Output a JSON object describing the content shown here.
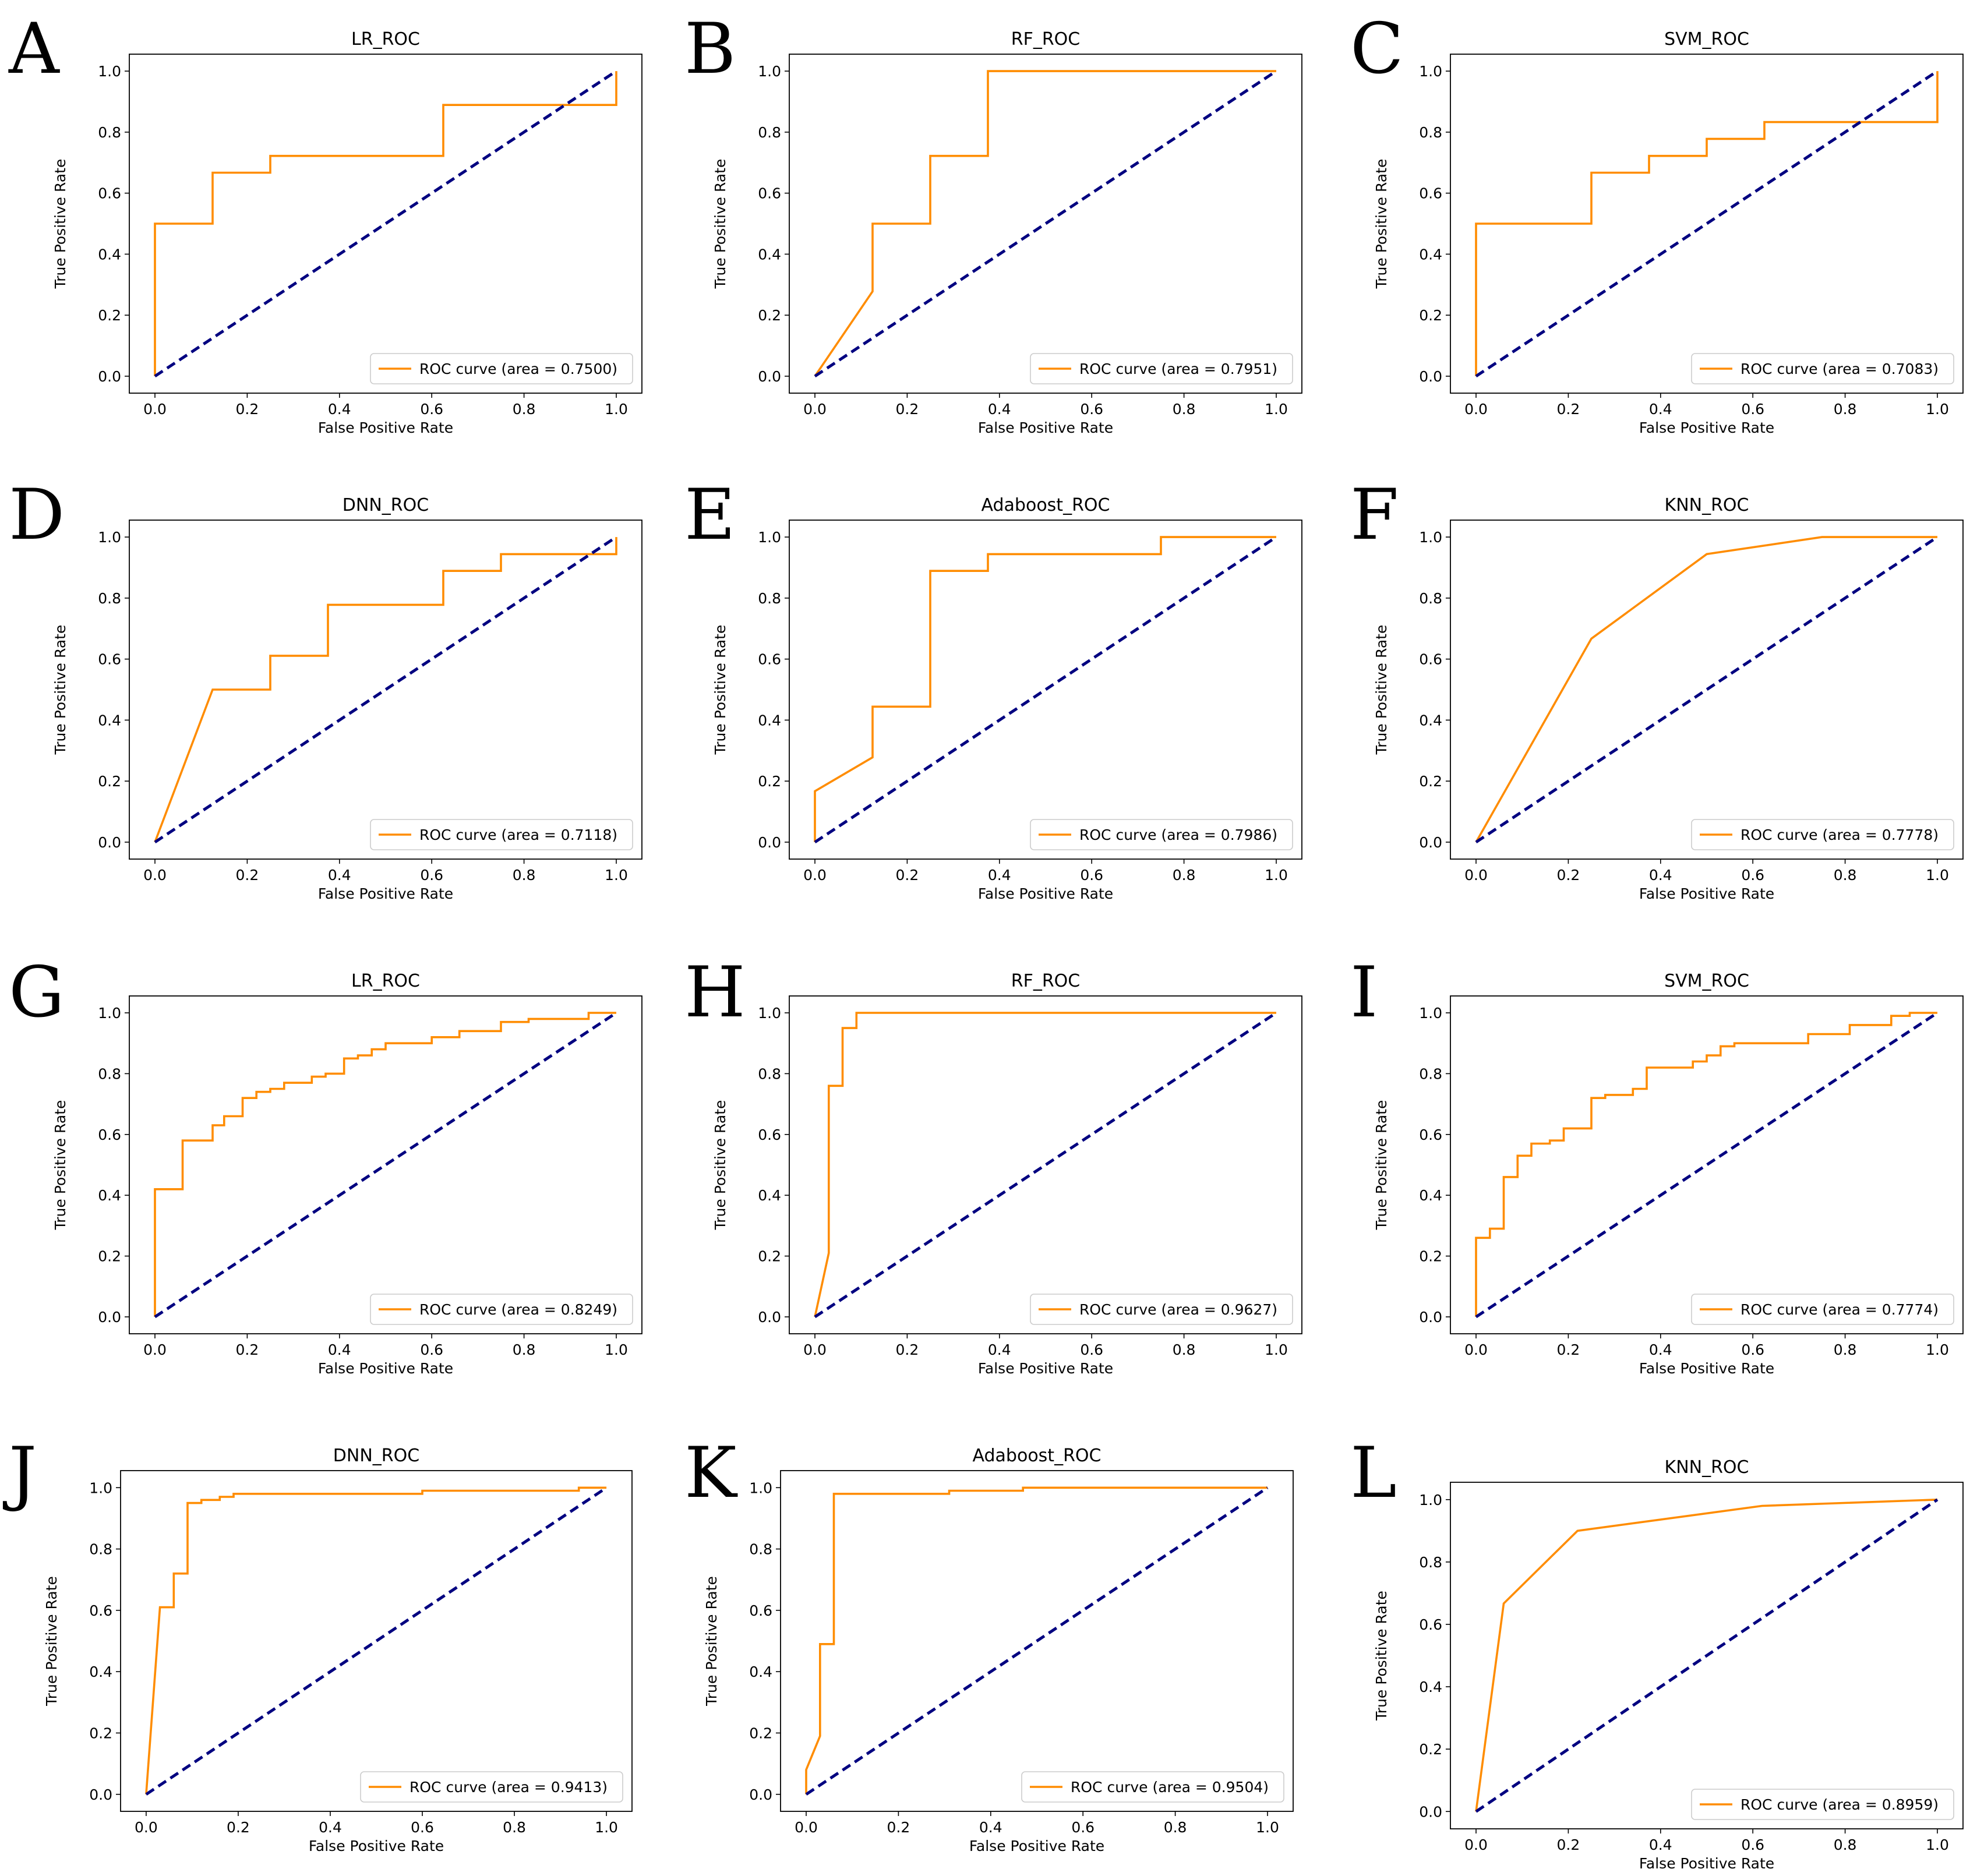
{
  "figure": {
    "roc_color": "#ff8c00",
    "chance_color": "#000080"
  },
  "chart_data": [
    {
      "panel": "A",
      "type": "line",
      "title": "LR_ROC",
      "xlabel": "False Positive Rate",
      "ylabel": "True Positive Rate",
      "xlim": [
        0,
        1
      ],
      "ylim": [
        0,
        1
      ],
      "xticks": [
        "0.0",
        "0.2",
        "0.4",
        "0.6",
        "0.8",
        "1.0"
      ],
      "yticks": [
        "0.0",
        "0.2",
        "0.4",
        "0.6",
        "0.8",
        "1.0"
      ],
      "legend": "ROC curve (area = 0.7500)",
      "legend_position": "lower-right",
      "series": [
        {
          "name": "ROC curve (area = 0.7500)",
          "x": [
            0,
            0,
            0.125,
            0.125,
            0.25,
            0.25,
            0.625,
            0.625,
            1,
            1
          ],
          "y": [
            0,
            0.5,
            0.5,
            0.667,
            0.667,
            0.722,
            0.722,
            0.889,
            0.889,
            1
          ]
        },
        {
          "name": "chance",
          "x": [
            0,
            1
          ],
          "y": [
            0,
            1
          ]
        }
      ]
    },
    {
      "panel": "B",
      "type": "line",
      "title": "RF_ROC",
      "xlabel": "False Positive Rate",
      "ylabel": "True Positive Rate",
      "xlim": [
        0,
        1
      ],
      "ylim": [
        0,
        1
      ],
      "xticks": [
        "0.0",
        "0.2",
        "0.4",
        "0.6",
        "0.8",
        "1.0"
      ],
      "yticks": [
        "0.0",
        "0.2",
        "0.4",
        "0.6",
        "0.8",
        "1.0"
      ],
      "legend": "ROC curve (area = 0.7951)",
      "legend_position": "lower-right",
      "series": [
        {
          "name": "ROC curve (area = 0.7951)",
          "x": [
            0,
            0.125,
            0.125,
            0.25,
            0.25,
            0.375,
            0.375,
            1
          ],
          "y": [
            0,
            0.278,
            0.5,
            0.5,
            0.722,
            0.722,
            1,
            1
          ]
        },
        {
          "name": "chance",
          "x": [
            0,
            1
          ],
          "y": [
            0,
            1
          ]
        }
      ]
    },
    {
      "panel": "C",
      "type": "line",
      "title": "SVM_ROC",
      "xlabel": "False Positive Rate",
      "ylabel": "True Positive Rate",
      "xlim": [
        0,
        1
      ],
      "ylim": [
        0,
        1
      ],
      "xticks": [
        "0.0",
        "0.2",
        "0.4",
        "0.6",
        "0.8",
        "1.0"
      ],
      "yticks": [
        "0.0",
        "0.2",
        "0.4",
        "0.6",
        "0.8",
        "1.0"
      ],
      "legend": "ROC curve (area = 0.7083)",
      "legend_position": "lower-right",
      "series": [
        {
          "name": "ROC curve (area = 0.7083)",
          "x": [
            0,
            0,
            0.25,
            0.25,
            0.375,
            0.375,
            0.5,
            0.5,
            0.625,
            0.625,
            1,
            1
          ],
          "y": [
            0,
            0.5,
            0.5,
            0.667,
            0.667,
            0.722,
            0.722,
            0.778,
            0.778,
            0.833,
            0.833,
            1
          ]
        },
        {
          "name": "chance",
          "x": [
            0,
            1
          ],
          "y": [
            0,
            1
          ]
        }
      ]
    },
    {
      "panel": "D",
      "type": "line",
      "title": "DNN_ROC",
      "xlabel": "False Positive Rate",
      "ylabel": "True Positive Rate",
      "xlim": [
        0,
        1
      ],
      "ylim": [
        0,
        1
      ],
      "xticks": [
        "0.0",
        "0.2",
        "0.4",
        "0.6",
        "0.8",
        "1.0"
      ],
      "yticks": [
        "0.0",
        "0.2",
        "0.4",
        "0.6",
        "0.8",
        "1.0"
      ],
      "legend": "ROC curve (area = 0.7118)",
      "legend_position": "lower-right",
      "series": [
        {
          "name": "ROC curve (area = 0.7118)",
          "x": [
            0,
            0.125,
            0.25,
            0.25,
            0.375,
            0.375,
            0.625,
            0.625,
            0.75,
            0.75,
            1,
            1
          ],
          "y": [
            0,
            0.5,
            0.5,
            0.611,
            0.611,
            0.778,
            0.778,
            0.889,
            0.889,
            0.944,
            0.944,
            1
          ]
        },
        {
          "name": "chance",
          "x": [
            0,
            1
          ],
          "y": [
            0,
            1
          ]
        }
      ]
    },
    {
      "panel": "E",
      "type": "line",
      "title": "Adaboost_ROC",
      "xlabel": "False Positive Rate",
      "ylabel": "True Positive Rate",
      "xlim": [
        0,
        1
      ],
      "ylim": [
        0,
        1
      ],
      "xticks": [
        "0.0",
        "0.2",
        "0.4",
        "0.6",
        "0.8",
        "1.0"
      ],
      "yticks": [
        "0.0",
        "0.2",
        "0.4",
        "0.6",
        "0.8",
        "1.0"
      ],
      "legend": "ROC curve (area = 0.7986)",
      "legend_position": "lower-right",
      "series": [
        {
          "name": "ROC curve (area = 0.7986)",
          "x": [
            0,
            0,
            0.125,
            0.125,
            0.25,
            0.25,
            0.375,
            0.375,
            0.75,
            0.75,
            1
          ],
          "y": [
            0,
            0.167,
            0.278,
            0.444,
            0.444,
            0.889,
            0.889,
            0.944,
            0.944,
            1,
            1
          ]
        },
        {
          "name": "chance",
          "x": [
            0,
            1
          ],
          "y": [
            0,
            1
          ]
        }
      ]
    },
    {
      "panel": "F",
      "type": "line",
      "title": "KNN_ROC",
      "xlabel": "False Positive Rate",
      "ylabel": "True Positive Rate",
      "xlim": [
        0,
        1
      ],
      "ylim": [
        0,
        1
      ],
      "xticks": [
        "0.0",
        "0.2",
        "0.4",
        "0.6",
        "0.8",
        "1.0"
      ],
      "yticks": [
        "0.0",
        "0.2",
        "0.4",
        "0.6",
        "0.8",
        "1.0"
      ],
      "legend": "ROC curve (area = 0.7778)",
      "legend_position": "lower-right",
      "series": [
        {
          "name": "ROC curve (area = 0.7778)",
          "x": [
            0,
            0.25,
            0.5,
            0.75,
            1
          ],
          "y": [
            0,
            0.667,
            0.944,
            1,
            1
          ]
        },
        {
          "name": "chance",
          "x": [
            0,
            1
          ],
          "y": [
            0,
            1
          ]
        }
      ]
    },
    {
      "panel": "G",
      "type": "line",
      "title": "LR_ROC",
      "xlabel": "False Positive Rate",
      "ylabel": "True Positive Rate",
      "xlim": [
        0,
        1
      ],
      "ylim": [
        0,
        1
      ],
      "xticks": [
        "0.0",
        "0.2",
        "0.4",
        "0.6",
        "0.8",
        "1.0"
      ],
      "yticks": [
        "0.0",
        "0.2",
        "0.4",
        "0.6",
        "0.8",
        "1.0"
      ],
      "legend": "ROC curve (area = 0.8249)",
      "legend_position": "lower-right",
      "series": [
        {
          "name": "ROC curve (area = 0.8249)",
          "x": [
            0,
            0,
            0.06,
            0.06,
            0.125,
            0.125,
            0.15,
            0.15,
            0.19,
            0.19,
            0.22,
            0.22,
            0.25,
            0.25,
            0.28,
            0.28,
            0.34,
            0.34,
            0.37,
            0.37,
            0.41,
            0.41,
            0.44,
            0.44,
            0.47,
            0.47,
            0.5,
            0.5,
            0.53,
            0.53,
            0.6,
            0.6,
            0.66,
            0.66,
            0.75,
            0.75,
            0.81,
            0.81,
            0.94,
            0.94,
            1
          ],
          "y": [
            0,
            0.42,
            0.42,
            0.58,
            0.58,
            0.63,
            0.63,
            0.66,
            0.66,
            0.72,
            0.72,
            0.74,
            0.74,
            0.75,
            0.75,
            0.77,
            0.77,
            0.79,
            0.79,
            0.8,
            0.8,
            0.85,
            0.85,
            0.86,
            0.86,
            0.88,
            0.88,
            0.9,
            0.9,
            0.9,
            0.9,
            0.92,
            0.92,
            0.94,
            0.94,
            0.97,
            0.97,
            0.98,
            0.98,
            1,
            1
          ]
        },
        {
          "name": "chance",
          "x": [
            0,
            1
          ],
          "y": [
            0,
            1
          ]
        }
      ]
    },
    {
      "panel": "H",
      "type": "line",
      "title": "RF_ROC",
      "xlabel": "False Positive Rate",
      "ylabel": "True Positive Rate",
      "xlim": [
        0,
        1
      ],
      "ylim": [
        0,
        1
      ],
      "xticks": [
        "0.0",
        "0.2",
        "0.4",
        "0.6",
        "0.8",
        "1.0"
      ],
      "yticks": [
        "0.0",
        "0.2",
        "0.4",
        "0.6",
        "0.8",
        "1.0"
      ],
      "legend": "ROC curve (area = 0.9627)",
      "legend_position": "lower-right",
      "series": [
        {
          "name": "ROC curve (area = 0.9627)",
          "x": [
            0,
            0.03,
            0.03,
            0.06,
            0.06,
            0.09,
            0.09,
            1
          ],
          "y": [
            0,
            0.21,
            0.76,
            0.76,
            0.95,
            0.95,
            1,
            1
          ]
        },
        {
          "name": "chance",
          "x": [
            0,
            1
          ],
          "y": [
            0,
            1
          ]
        }
      ]
    },
    {
      "panel": "I",
      "type": "line",
      "title": "SVM_ROC",
      "xlabel": "False Positive Rate",
      "ylabel": "True Positive Rate",
      "xlim": [
        0,
        1
      ],
      "ylim": [
        0,
        1
      ],
      "xticks": [
        "0.0",
        "0.2",
        "0.4",
        "0.6",
        "0.8",
        "1.0"
      ],
      "yticks": [
        "0.0",
        "0.2",
        "0.4",
        "0.6",
        "0.8",
        "1.0"
      ],
      "legend": "ROC curve (area = 0.7774)",
      "legend_position": "lower-right",
      "series": [
        {
          "name": "ROC curve (area = 0.7774)",
          "x": [
            0,
            0,
            0.03,
            0.03,
            0.06,
            0.06,
            0.09,
            0.09,
            0.12,
            0.12,
            0.16,
            0.16,
            0.19,
            0.19,
            0.25,
            0.25,
            0.28,
            0.28,
            0.34,
            0.34,
            0.37,
            0.37,
            0.47,
            0.47,
            0.5,
            0.5,
            0.53,
            0.53,
            0.56,
            0.56,
            0.72,
            0.72,
            0.81,
            0.81,
            0.9,
            0.9,
            0.94,
            0.94,
            1
          ],
          "y": [
            0,
            0.26,
            0.26,
            0.29,
            0.29,
            0.46,
            0.46,
            0.53,
            0.53,
            0.57,
            0.57,
            0.58,
            0.58,
            0.62,
            0.62,
            0.72,
            0.72,
            0.73,
            0.73,
            0.75,
            0.75,
            0.82,
            0.82,
            0.84,
            0.84,
            0.86,
            0.86,
            0.89,
            0.89,
            0.9,
            0.9,
            0.93,
            0.93,
            0.96,
            0.96,
            0.99,
            0.99,
            1,
            1
          ]
        },
        {
          "name": "chance",
          "x": [
            0,
            1
          ],
          "y": [
            0,
            1
          ]
        }
      ]
    },
    {
      "panel": "J",
      "type": "line",
      "title": "DNN_ROC",
      "xlabel": "False Positive Rate",
      "ylabel": "True Positive Rate",
      "xlim": [
        0,
        1
      ],
      "ylim": [
        0,
        1
      ],
      "xticks": [
        "0.0",
        "0.2",
        "0.4",
        "0.6",
        "0.8",
        "1.0"
      ],
      "yticks": [
        "0.0",
        "0.2",
        "0.4",
        "0.6",
        "0.8",
        "1.0"
      ],
      "legend": "ROC curve (area = 0.9413)",
      "legend_position": "lower-right",
      "series": [
        {
          "name": "ROC curve (area = 0.9413)",
          "x": [
            0,
            0.03,
            0.06,
            0.06,
            0.09,
            0.09,
            0.12,
            0.12,
            0.16,
            0.16,
            0.19,
            0.19,
            0.6,
            0.6,
            0.94,
            0.94,
            1
          ],
          "y": [
            0,
            0.61,
            0.61,
            0.72,
            0.72,
            0.95,
            0.95,
            0.96,
            0.96,
            0.97,
            0.97,
            0.98,
            0.98,
            0.99,
            0.99,
            1,
            1
          ]
        },
        {
          "name": "chance",
          "x": [
            0,
            1
          ],
          "y": [
            0,
            1
          ]
        }
      ]
    },
    {
      "panel": "K",
      "type": "line",
      "title": "Adaboost_ROC",
      "xlabel": "False Positive Rate",
      "ylabel": "True Positive Rate",
      "xlim": [
        0,
        1
      ],
      "ylim": [
        0,
        1
      ],
      "xticks": [
        "0.0",
        "0.2",
        "0.4",
        "0.6",
        "0.8",
        "1.0"
      ],
      "yticks": [
        "0.0",
        "0.2",
        "0.4",
        "0.6",
        "0.8",
        "1.0"
      ],
      "legend": "ROC curve (area = 0.9504)",
      "legend_position": "lower-right",
      "series": [
        {
          "name": "ROC curve (area = 0.9504)",
          "x": [
            0,
            0,
            0.03,
            0.03,
            0.06,
            0.06,
            0.31,
            0.31,
            0.47,
            0.47,
            1
          ],
          "y": [
            0,
            0.08,
            0.19,
            0.49,
            0.49,
            0.98,
            0.98,
            0.99,
            0.99,
            1,
            1
          ]
        },
        {
          "name": "chance",
          "x": [
            0,
            1
          ],
          "y": [
            0,
            1
          ]
        }
      ]
    },
    {
      "panel": "L",
      "type": "line",
      "title": "KNN_ROC",
      "xlabel": "False Positive Rate",
      "ylabel": "True Positive Rate",
      "xlim": [
        0,
        1
      ],
      "ylim": [
        0,
        1
      ],
      "xticks": [
        "0.0",
        "0.2",
        "0.4",
        "0.6",
        "0.8",
        "1.0"
      ],
      "yticks": [
        "0.0",
        "0.2",
        "0.4",
        "0.6",
        "0.8",
        "1.0"
      ],
      "legend": "ROC curve (area = 0.8959)",
      "legend_position": "lower-right",
      "series": [
        {
          "name": "ROC curve (area = 0.8959)",
          "x": [
            0,
            0.06,
            0.22,
            0.62,
            1
          ],
          "y": [
            0,
            0.667,
            0.9,
            0.98,
            1
          ]
        },
        {
          "name": "chance",
          "x": [
            0,
            1
          ],
          "y": [
            0,
            1
          ]
        }
      ]
    }
  ]
}
